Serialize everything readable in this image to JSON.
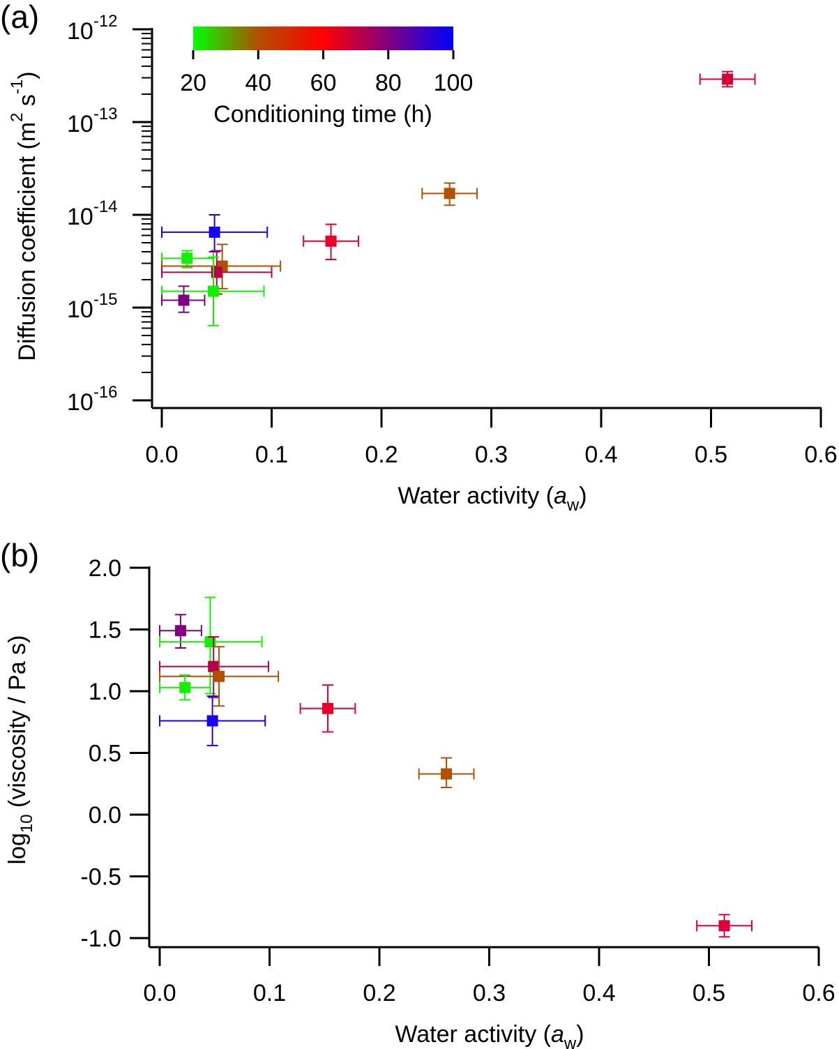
{
  "chart_data": [
    {
      "panel_label": "(a)",
      "type": "scatter",
      "xlabel": {
        "main": "Water activity (",
        "italic": "a",
        "sub": "w",
        "end": ")"
      },
      "ylabel": {
        "main": "Diffusion coefficient (m",
        "sup1": "2",
        "mid": " s",
        "sup2": "-1",
        "end": ")"
      },
      "xlim": [
        0,
        0.6
      ],
      "ylim_log10": [
        -16,
        -12
      ],
      "yscale": "log",
      "x_ticks": [
        "0.0",
        "0.1",
        "0.2",
        "0.3",
        "0.4",
        "0.5",
        "0.6"
      ],
      "y_ticks": [
        {
          "base": "10",
          "exp": "-12"
        },
        {
          "base": "10",
          "exp": "-13"
        },
        {
          "base": "10",
          "exp": "-14"
        },
        {
          "base": "10",
          "exp": "-15"
        },
        {
          "base": "10",
          "exp": "-16"
        }
      ],
      "points": [
        {
          "x": 0.515,
          "y": 2.9e-13,
          "xlo": 0.49,
          "xhi": 0.54,
          "ylo": 2.4e-13,
          "yhi": 3.5e-13,
          "time_h": 62,
          "color": "#d8003a"
        },
        {
          "x": 0.262,
          "y": 1.7e-14,
          "xlo": 0.237,
          "xhi": 0.287,
          "ylo": 1.27e-14,
          "yhi": 2.2e-14,
          "time_h": 40,
          "color": "#b05000"
        },
        {
          "x": 0.154,
          "y": 5.2e-15,
          "xlo": 0.129,
          "xhi": 0.179,
          "ylo": 3.3e-15,
          "yhi": 7.9e-15,
          "time_h": 60,
          "color": "#e8002a"
        },
        {
          "x": 0.048,
          "y": 6.5e-15,
          "xlo": 0.0,
          "xhi": 0.096,
          "ylo": 4e-15,
          "yhi": 1e-14,
          "time_h": 100,
          "color": "#1a00f0"
        },
        {
          "x": 0.023,
          "y": 3.4e-15,
          "xlo": 0.0,
          "xhi": 0.047,
          "ylo": 2.7e-15,
          "yhi": 4.1e-15,
          "time_h": 20,
          "color": "#10f000"
        },
        {
          "x": 0.055,
          "y": 2.8e-15,
          "xlo": 0.0,
          "xhi": 0.108,
          "ylo": 1.6e-15,
          "yhi": 4.8e-15,
          "time_h": 40,
          "color": "#b05000"
        },
        {
          "x": 0.05,
          "y": 2.4e-15,
          "xlo": 0.0,
          "xhi": 0.1,
          "ylo": 1.4e-15,
          "yhi": 4.1e-15,
          "time_h": 68,
          "color": "#b8004a"
        },
        {
          "x": 0.047,
          "y": 1.5e-15,
          "xlo": 0.0,
          "xhi": 0.093,
          "ylo": 6.4e-16,
          "yhi": 3.5e-15,
          "time_h": 20,
          "color": "#10f000"
        },
        {
          "x": 0.02,
          "y": 1.2e-15,
          "xlo": 0.0,
          "xhi": 0.039,
          "ylo": 8.9e-16,
          "yhi": 1.7e-15,
          "time_h": 80,
          "color": "#800080"
        }
      ],
      "colorbar": {
        "label": "Conditioning time (h)",
        "range": [
          20,
          100
        ],
        "ticks": [
          "20",
          "40",
          "60",
          "80",
          "100"
        ],
        "colors": [
          "#00ff00",
          "#b05000",
          "#ff0000",
          "#800080",
          "#0000ff"
        ]
      }
    },
    {
      "panel_label": "(b)",
      "type": "scatter",
      "xlabel": {
        "main": "Water activity (",
        "italic": "a",
        "sub": "w",
        "end": ")"
      },
      "ylabel": {
        "main": "log",
        "sub": "10",
        "end": " (viscosity / Pa s)"
      },
      "xlim": [
        0,
        0.6
      ],
      "ylim": [
        -1.0,
        2.0
      ],
      "x_ticks": [
        "0.0",
        "0.1",
        "0.2",
        "0.3",
        "0.4",
        "0.5",
        "0.6"
      ],
      "y_ticks": [
        "2.0",
        "1.5",
        "1.0",
        "0.5",
        "0.0",
        "-0.5",
        "-1.0"
      ],
      "points": [
        {
          "x": 0.019,
          "y": 1.49,
          "xlo": 0.0,
          "xhi": 0.038,
          "ylo": 1.35,
          "yhi": 1.62,
          "color": "#800080"
        },
        {
          "x": 0.046,
          "y": 1.4,
          "xlo": 0.0,
          "xhi": 0.093,
          "ylo": 0.98,
          "yhi": 1.76,
          "color": "#10f000"
        },
        {
          "x": 0.049,
          "y": 1.2,
          "xlo": 0.0,
          "xhi": 0.099,
          "ylo": 0.95,
          "yhi": 1.44,
          "color": "#b8004a"
        },
        {
          "x": 0.054,
          "y": 1.12,
          "xlo": 0.0,
          "xhi": 0.108,
          "ylo": 0.88,
          "yhi": 1.36,
          "color": "#b05000"
        },
        {
          "x": 0.023,
          "y": 1.03,
          "xlo": 0.0,
          "xhi": 0.046,
          "ylo": 0.93,
          "yhi": 1.13,
          "color": "#10f000"
        },
        {
          "x": 0.048,
          "y": 0.76,
          "xlo": 0.0,
          "xhi": 0.096,
          "ylo": 0.56,
          "yhi": 0.96,
          "color": "#1a00f0"
        },
        {
          "x": 0.153,
          "y": 0.86,
          "xlo": 0.128,
          "xhi": 0.178,
          "ylo": 0.67,
          "yhi": 1.05,
          "color": "#e8002a"
        },
        {
          "x": 0.261,
          "y": 0.33,
          "xlo": 0.236,
          "xhi": 0.286,
          "ylo": 0.22,
          "yhi": 0.46,
          "color": "#b05000"
        },
        {
          "x": 0.514,
          "y": -0.9,
          "xlo": 0.489,
          "xhi": 0.539,
          "ylo": -0.99,
          "yhi": -0.81,
          "color": "#d8003a"
        }
      ]
    }
  ]
}
